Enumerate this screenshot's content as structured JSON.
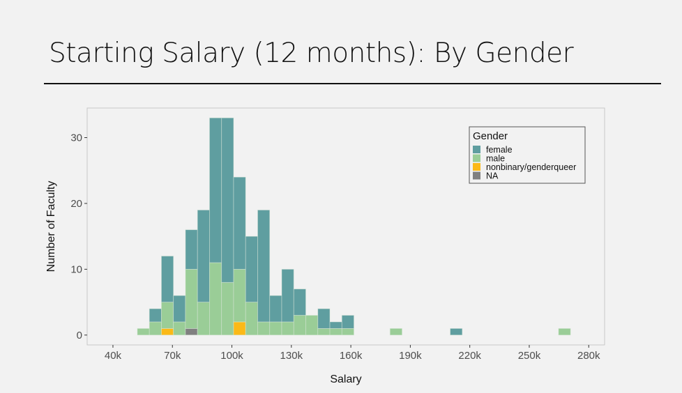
{
  "header": {
    "title": "Starting Salary (12 months): By Gender"
  },
  "chart_data": {
    "type": "bar",
    "subtype": "stacked-histogram",
    "title": "Starting Salary (12 months): By Gender",
    "xlabel": "Salary",
    "ylabel": "Number of Faculty",
    "x_unit": "thousands of dollars",
    "xlim": [
      27,
      288
    ],
    "ylim": [
      -1.5,
      34.5
    ],
    "bin_start": 52.3,
    "bin_width": 6.07,
    "x_ticks": [
      40,
      70,
      100,
      130,
      160,
      190,
      220,
      250,
      280
    ],
    "x_tick_labels": [
      "40k",
      "70k",
      "100k",
      "130k",
      "160k",
      "190k",
      "220k",
      "250k",
      "280k"
    ],
    "y_ticks": [
      0,
      10,
      20,
      30
    ],
    "y_tick_labels": [
      "0",
      "10",
      "20",
      "30"
    ],
    "legend": {
      "title": "Gender",
      "placement": "top-right"
    },
    "series": [
      {
        "name": "female",
        "color": "#5f9ea0",
        "values": [
          0,
          2,
          7,
          4,
          6,
          14,
          22,
          25,
          14,
          10,
          17,
          4,
          8,
          4,
          0,
          3,
          1,
          2,
          0,
          0,
          0,
          0,
          0,
          0,
          0,
          0,
          1,
          0,
          0,
          0,
          0,
          0,
          0,
          0,
          0,
          0
        ]
      },
      {
        "name": "male",
        "color": "#9acd97",
        "values": [
          1,
          2,
          4,
          2,
          9,
          5,
          11,
          8,
          8,
          5,
          2,
          2,
          2,
          3,
          3,
          1,
          1,
          1,
          0,
          0,
          0,
          1,
          0,
          0,
          0,
          0,
          0,
          0,
          0,
          0,
          0,
          0,
          0,
          0,
          0,
          1
        ]
      },
      {
        "name": "nonbinary/genderqueer",
        "color": "#fbb917",
        "values": [
          0,
          0,
          1,
          0,
          0,
          0,
          0,
          0,
          2,
          0,
          0,
          0,
          0,
          0,
          0,
          0,
          0,
          0,
          0,
          0,
          0,
          0,
          0,
          0,
          0,
          0,
          0,
          0,
          0,
          0,
          0,
          0,
          0,
          0,
          0,
          0
        ]
      },
      {
        "name": "NA",
        "color": "#808080",
        "values": [
          0,
          0,
          0,
          0,
          1,
          0,
          0,
          0,
          0,
          0,
          0,
          0,
          0,
          0,
          0,
          0,
          0,
          0,
          0,
          0,
          0,
          0,
          0,
          0,
          0,
          0,
          0,
          0,
          0,
          0,
          0,
          0,
          0,
          0,
          0,
          0
        ]
      }
    ]
  }
}
